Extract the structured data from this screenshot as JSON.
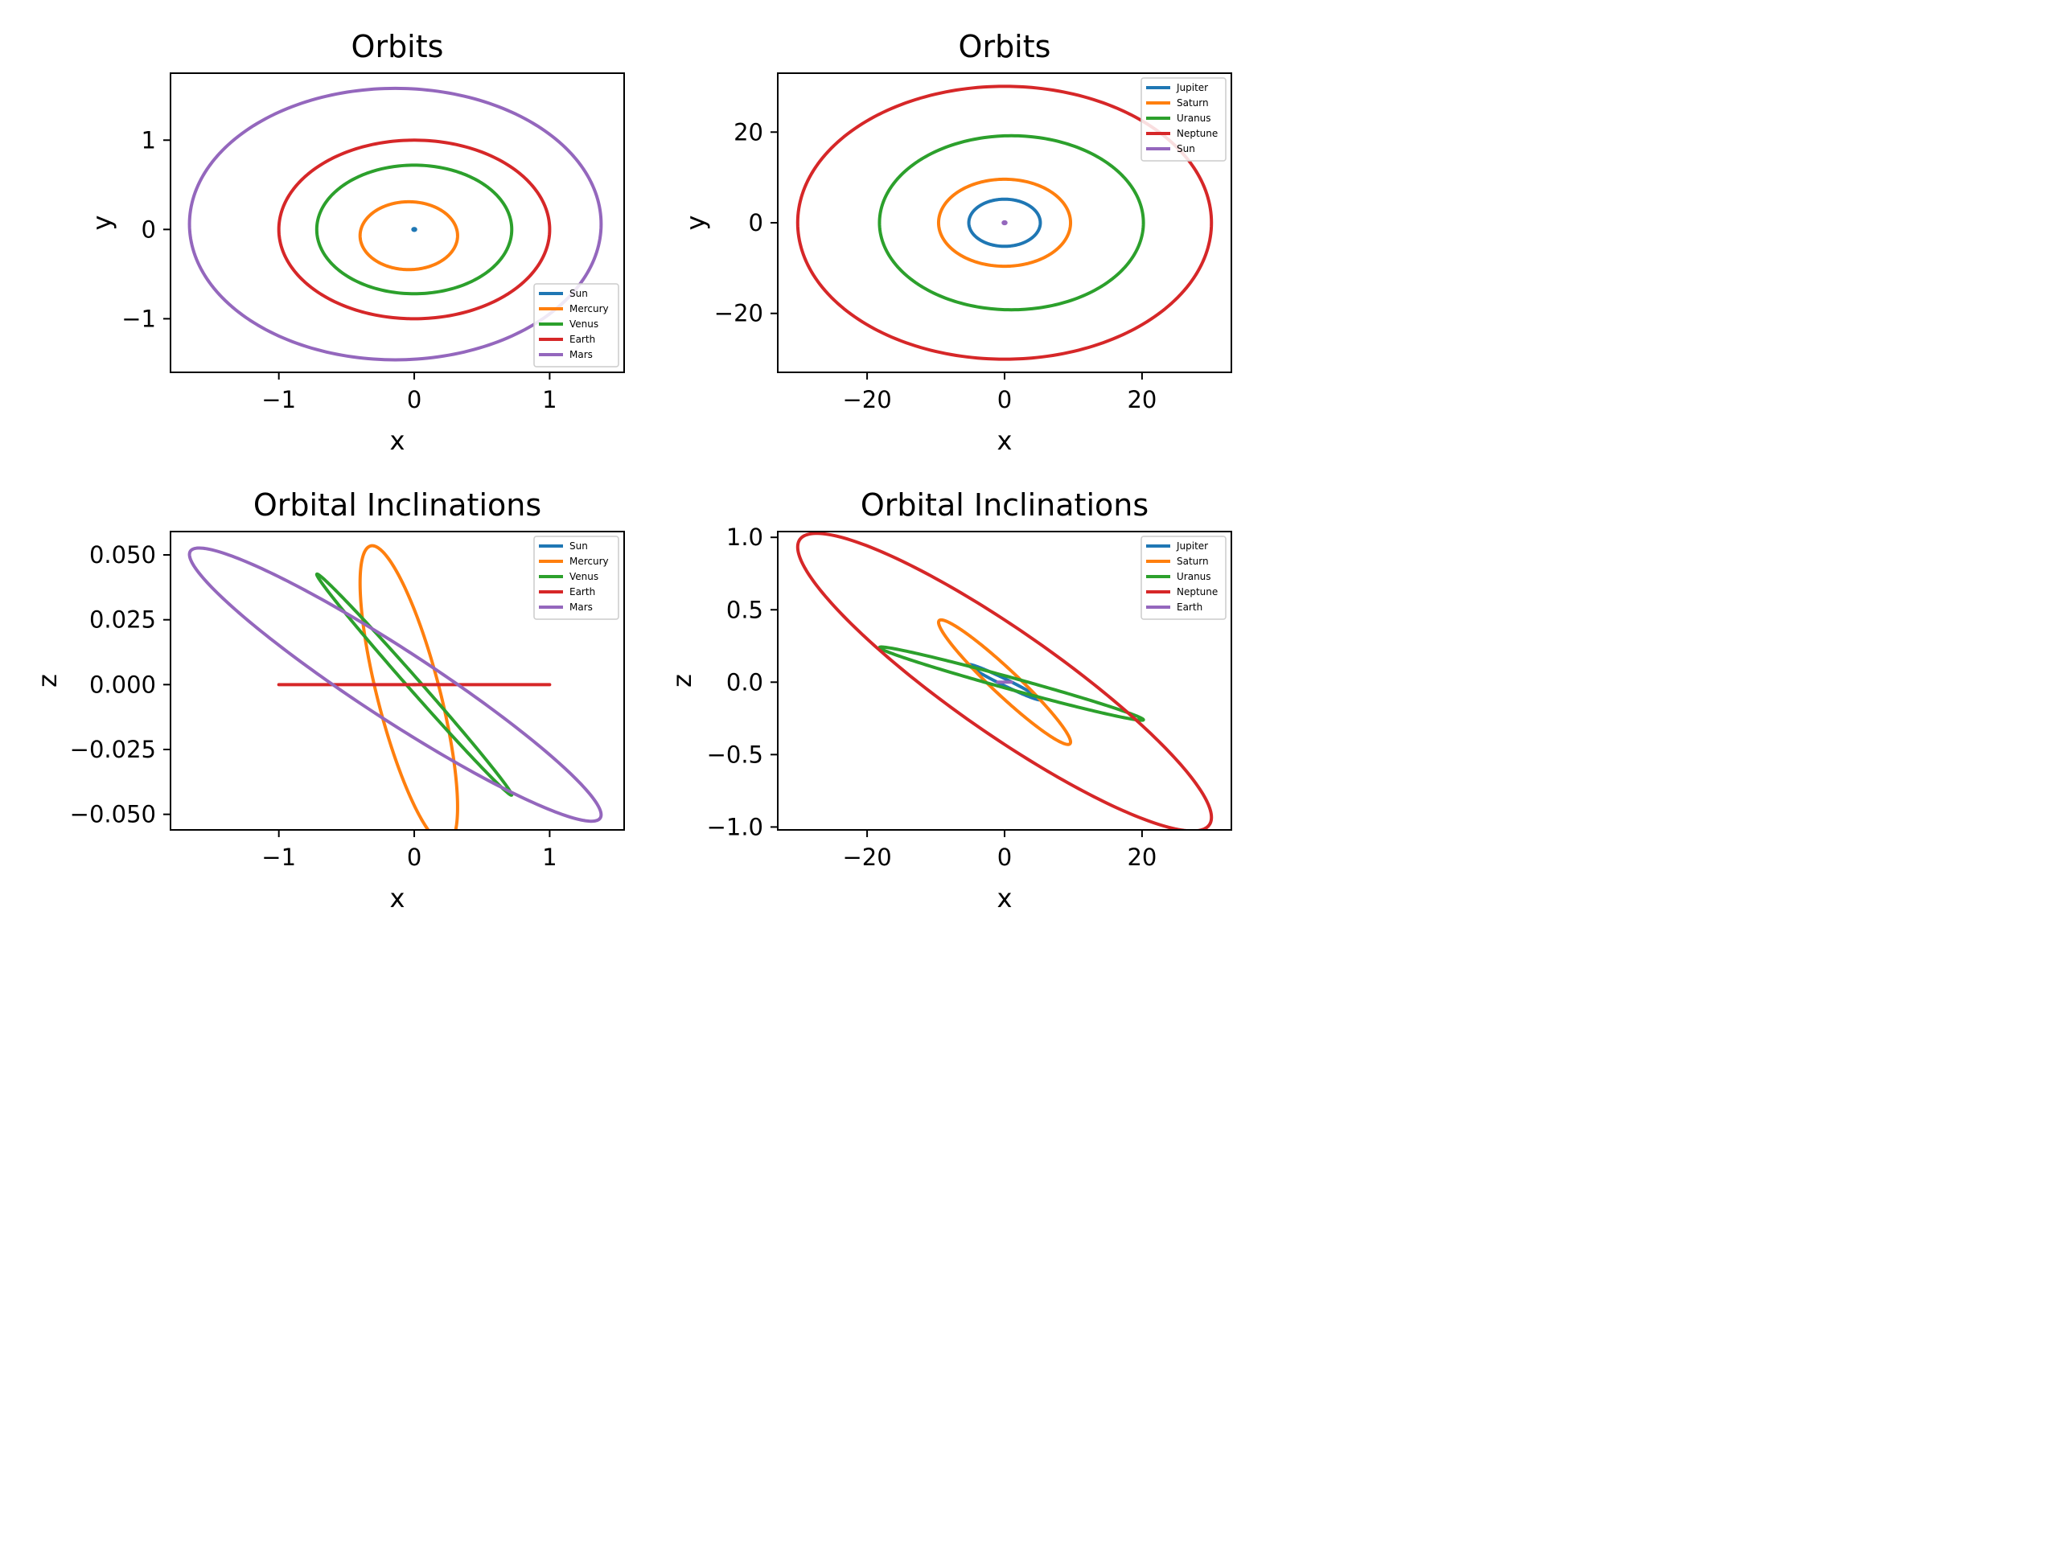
{
  "figure": {
    "background": "#ffffff"
  },
  "colors": {
    "blue": "#1f77b4",
    "orange": "#ff7f0e",
    "green": "#2ca02c",
    "red": "#d62728",
    "purple": "#9467bd"
  },
  "chart_data": [
    {
      "id": "inner-xy",
      "type": "line",
      "title": "Orbits",
      "xlabel": "x",
      "ylabel": "y",
      "xlim": [
        -1.8,
        1.55
      ],
      "ylim": [
        -1.6,
        1.75
      ],
      "xticks": [
        -1,
        0,
        1
      ],
      "xtick_labels": [
        "−1",
        "0",
        "1"
      ],
      "yticks": [
        -1,
        0,
        1
      ],
      "ytick_labels": [
        "−1",
        "0",
        "1"
      ],
      "grid": false,
      "legend_position": "lower right",
      "series": [
        {
          "name": "Sun",
          "color": "blue",
          "cx": 0.0,
          "cy": 0.0,
          "rx": 0.01,
          "ry": 0.01,
          "slope": 0
        },
        {
          "name": "Mercury",
          "color": "orange",
          "cx": -0.04,
          "cy": -0.07,
          "rx": 0.36,
          "ry": 0.38,
          "slope": 0
        },
        {
          "name": "Venus",
          "color": "green",
          "cx": 0.0,
          "cy": 0.0,
          "rx": 0.72,
          "ry": 0.72,
          "slope": 0
        },
        {
          "name": "Earth",
          "color": "red",
          "cx": 0.0,
          "cy": 0.0,
          "rx": 1.0,
          "ry": 1.0,
          "slope": 0
        },
        {
          "name": "Mars",
          "color": "purple",
          "cx": -0.14,
          "cy": 0.06,
          "rx": 1.52,
          "ry": 1.52,
          "slope": 0
        }
      ]
    },
    {
      "id": "outer-xy",
      "type": "line",
      "title": "Orbits",
      "xlabel": "x",
      "ylabel": "y",
      "xlim": [
        -33,
        33
      ],
      "ylim": [
        -33,
        33
      ],
      "xticks": [
        -20,
        0,
        20
      ],
      "xtick_labels": [
        "−20",
        "0",
        "20"
      ],
      "yticks": [
        -20,
        0,
        20
      ],
      "ytick_labels": [
        "−20",
        "0",
        "20"
      ],
      "grid": false,
      "legend_position": "upper right",
      "series": [
        {
          "name": "Jupiter",
          "color": "blue",
          "cx": 0.0,
          "cy": 0.0,
          "rx": 5.2,
          "ry": 5.2,
          "slope": 0
        },
        {
          "name": "Saturn",
          "color": "orange",
          "cx": 0.0,
          "cy": 0.0,
          "rx": 9.6,
          "ry": 9.6,
          "slope": 0
        },
        {
          "name": "Uranus",
          "color": "green",
          "cx": 1.0,
          "cy": 0.0,
          "rx": 19.2,
          "ry": 19.2,
          "slope": 0
        },
        {
          "name": "Neptune",
          "color": "red",
          "cx": 0.0,
          "cy": 0.0,
          "rx": 30.1,
          "ry": 30.1,
          "slope": 0
        },
        {
          "name": "Sun",
          "color": "purple",
          "cx": 0.0,
          "cy": 0.0,
          "rx": 0.2,
          "ry": 0.2,
          "slope": 0
        }
      ]
    },
    {
      "id": "inner-xz",
      "type": "line",
      "title": "Orbital Inclinations",
      "xlabel": "x",
      "ylabel": "z",
      "xlim": [
        -1.8,
        1.55
      ],
      "ylim": [
        -0.056,
        0.059
      ],
      "xticks": [
        -1,
        0,
        1
      ],
      "xtick_labels": [
        "−1",
        "0",
        "1"
      ],
      "yticks": [
        -0.05,
        -0.025,
        0,
        0.025,
        0.05
      ],
      "ytick_labels": [
        "−0.050",
        "−0.025",
        "0.000",
        "0.025",
        "0.050"
      ],
      "grid": false,
      "legend_position": "upper right",
      "series": [
        {
          "name": "Sun",
          "color": "blue",
          "cx": 0.0,
          "cy": 0.0,
          "rx": 0.01,
          "ry": 0.0,
          "slope": 0
        },
        {
          "name": "Mercury",
          "color": "orange",
          "cx": -0.04,
          "cy": -0.004,
          "rx": 0.36,
          "ry": 0.038,
          "slope": -0.12
        },
        {
          "name": "Venus",
          "color": "green",
          "cx": 0.0,
          "cy": 0.0,
          "rx": 0.72,
          "ry": 0.0035,
          "slope": -0.059
        },
        {
          "name": "Earth",
          "color": "red",
          "cx": 0.0,
          "cy": 0.0,
          "rx": 1.0,
          "ry": 0.0,
          "slope": 0
        },
        {
          "name": "Mars",
          "color": "purple",
          "cx": -0.14,
          "cy": 0.0,
          "rx": 1.52,
          "ry": 0.016,
          "slope": -0.033
        }
      ]
    },
    {
      "id": "outer-xz",
      "type": "line",
      "title": "Orbital Inclinations",
      "xlabel": "x",
      "ylabel": "z",
      "xlim": [
        -33,
        33
      ],
      "ylim": [
        -1.02,
        1.04
      ],
      "xticks": [
        -20,
        0,
        20
      ],
      "xtick_labels": [
        "−20",
        "0",
        "20"
      ],
      "yticks": [
        -1.0,
        -0.5,
        0,
        0.5,
        1.0
      ],
      "ytick_labels": [
        "−1.0",
        "−0.5",
        "0.0",
        "0.5",
        "1.0"
      ],
      "grid": false,
      "legend_position": "upper right",
      "series": [
        {
          "name": "Jupiter",
          "color": "blue",
          "cx": 0.0,
          "cy": 0.0,
          "rx": 5.2,
          "ry": 0.025,
          "slope": -0.023
        },
        {
          "name": "Saturn",
          "color": "orange",
          "cx": 0.0,
          "cy": 0.0,
          "rx": 9.6,
          "ry": 0.12,
          "slope": -0.043
        },
        {
          "name": "Uranus",
          "color": "green",
          "cx": 1.0,
          "cy": -0.01,
          "rx": 19.2,
          "ry": 0.042,
          "slope": -0.013
        },
        {
          "name": "Neptune",
          "color": "red",
          "cx": 0.0,
          "cy": 0.0,
          "rx": 30.1,
          "ry": 0.43,
          "slope": -0.031
        },
        {
          "name": "Earth",
          "color": "purple",
          "cx": 0.0,
          "cy": 0.0,
          "rx": 1.0,
          "ry": 0.0,
          "slope": 0
        }
      ]
    }
  ]
}
